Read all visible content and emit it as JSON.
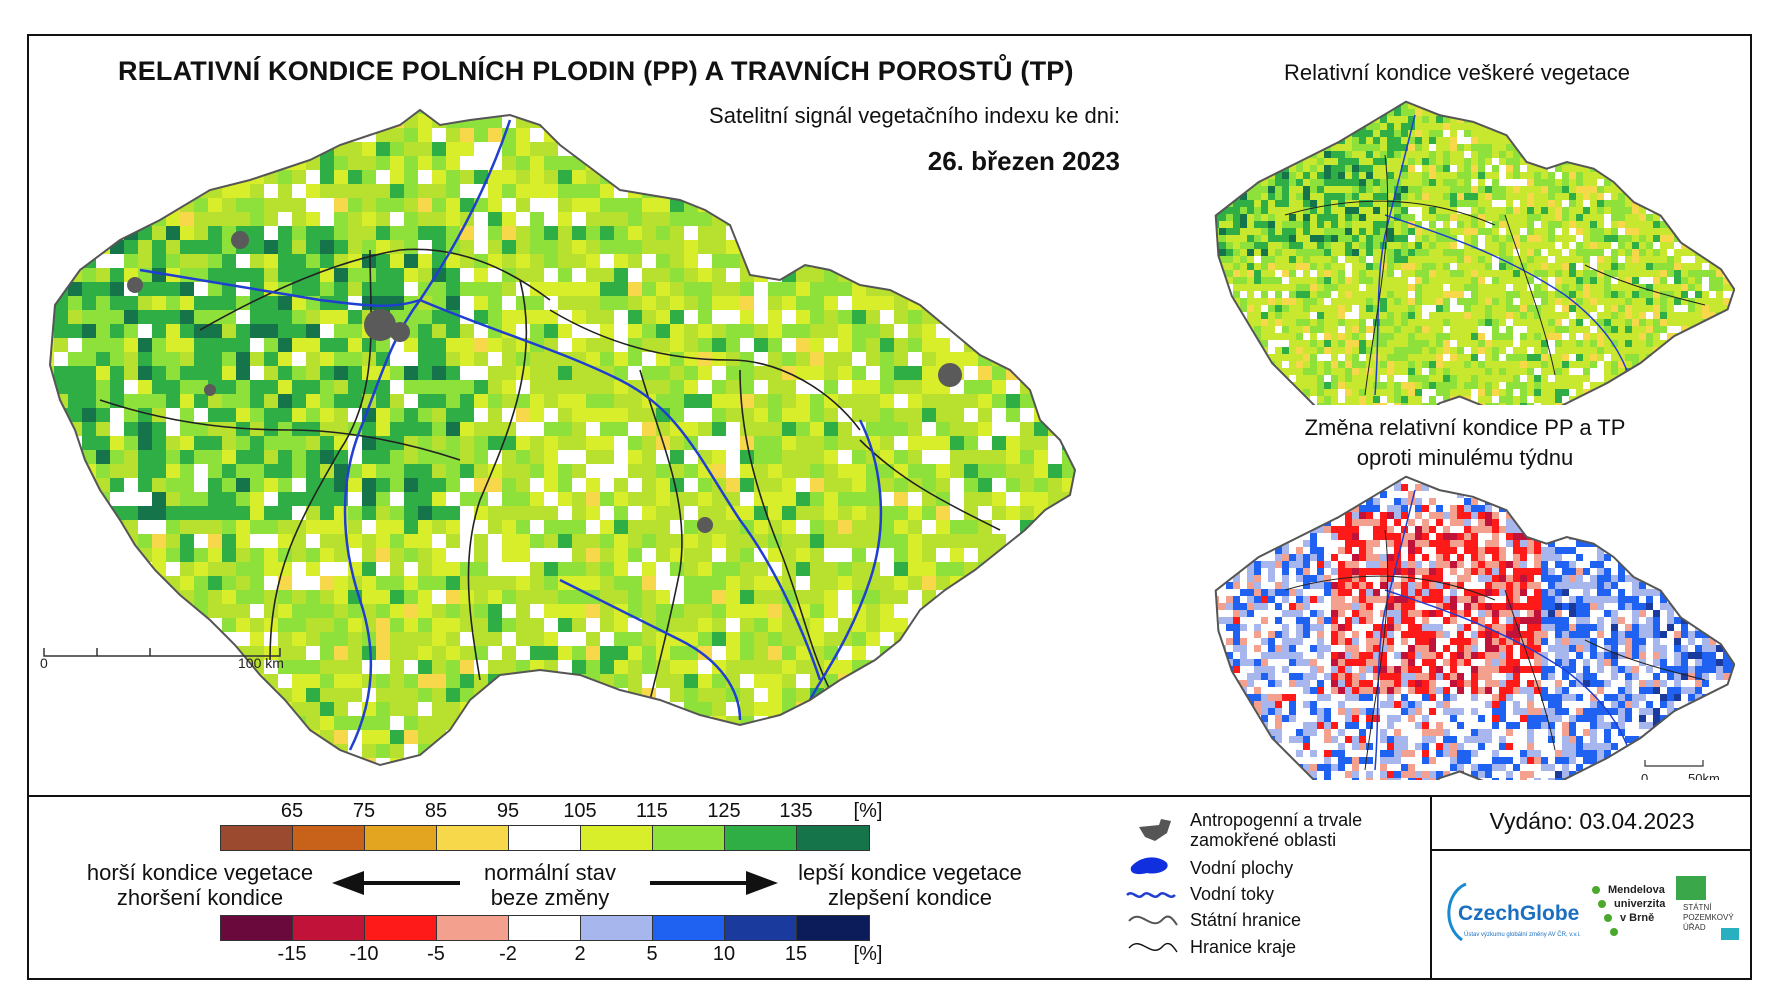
{
  "main_map": {
    "title": "RELATIVNÍ KONDICE POLNÍCH PLODIN (PP) A TRAVNÍCH POROSTŮ (TP)",
    "subtitle": "Satelitní signál vegetačního indexu ke dni:",
    "date": "26. březen 2023",
    "scalebar": {
      "start": "0",
      "end": "100 km"
    }
  },
  "inset_vegetation": {
    "title": "Relativní kondice veškeré vegetace"
  },
  "inset_change": {
    "title_line1": "Změna relativní kondice PP a TP",
    "title_line2": "oproti minulému týdnu",
    "scalebar": {
      "start": "0",
      "end": "50km"
    }
  },
  "legend_condition": {
    "ticks": [
      "65",
      "75",
      "85",
      "95",
      "105",
      "115",
      "125",
      "135",
      "[%]"
    ],
    "colors": [
      "#9b4a2f",
      "#c8621b",
      "#e3a51f",
      "#f8d84b",
      "#ffffff",
      "#d8ee2a",
      "#8ee03a",
      "#2fae45",
      "#16744a"
    ]
  },
  "legend_change": {
    "ticks": [
      "-15",
      "-10",
      "-5",
      "-2",
      "2",
      "5",
      "10",
      "15",
      "[%]"
    ],
    "colors": [
      "#6a0a3c",
      "#c1123a",
      "#ff1a1a",
      "#f4a08e",
      "#ffffff",
      "#a8b6ee",
      "#1f62f2",
      "#1a3a9e",
      "#0c1b5a"
    ]
  },
  "captions": {
    "worse_line1": "horší kondice vegetace",
    "worse_line2": "zhoršení kondice",
    "normal_line1": "normální stav",
    "normal_line2": "beze změny",
    "better_line1": "lepší kondice vegetace",
    "better_line2": "zlepšení kondice"
  },
  "symbols": {
    "anthropogenic_line1": "Antropogenní a trvale",
    "anthropogenic_line2": "zamokřené oblasti",
    "water_bodies": "Vodní plochy",
    "rivers": "Vodní toky",
    "state_border": "Státní hranice",
    "region_border": "Hranice kraje"
  },
  "issued": "Vydáno: 03.04.2023",
  "logos": {
    "czechglobe": "CzechGlobe",
    "czechglobe_sub": "Ústav výzkumu globální změny AV ČR, v.v.i.",
    "mendel_line1": "Mendelova",
    "mendel_line2": "univerzita",
    "mendel_line3": "v Brně",
    "spu_line1": "STÁTNÍ",
    "spu_line2": "POZEMKOVÝ",
    "spu_line3": "ÚŘAD"
  }
}
